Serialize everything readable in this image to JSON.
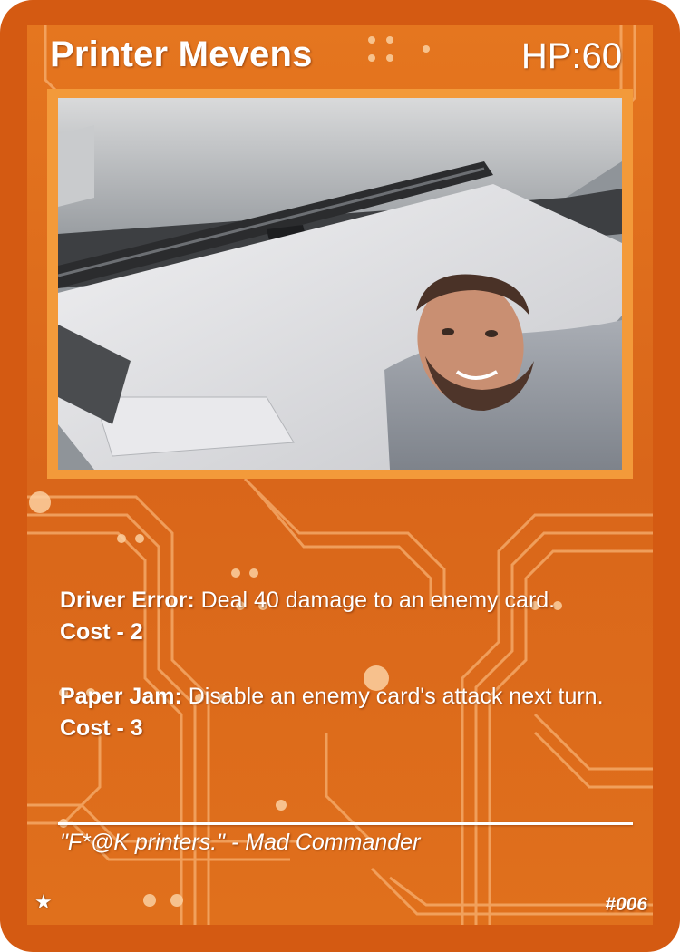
{
  "card": {
    "name": "Printer Mevens",
    "hp_label": "HP:",
    "hp_value": "60",
    "abilities": [
      {
        "name": "Driver Error:",
        "text": " Deal 40 damage to an enemy card. ",
        "cost": "Cost - 2"
      },
      {
        "name": "Paper Jam:",
        "text": " Disable an enemy card's attack next turn. ",
        "cost": "Cost - 3"
      }
    ],
    "flavor": "\"F*@K printers.\" - Mad Commander",
    "rarity_icon": "star-icon",
    "rarity_glyph": "★",
    "number": "#006"
  },
  "colors": {
    "border": "#d45a12",
    "board": "#e5761f",
    "trace": "#f7b071",
    "frame": "#f39a3a",
    "text": "#ffffff"
  }
}
